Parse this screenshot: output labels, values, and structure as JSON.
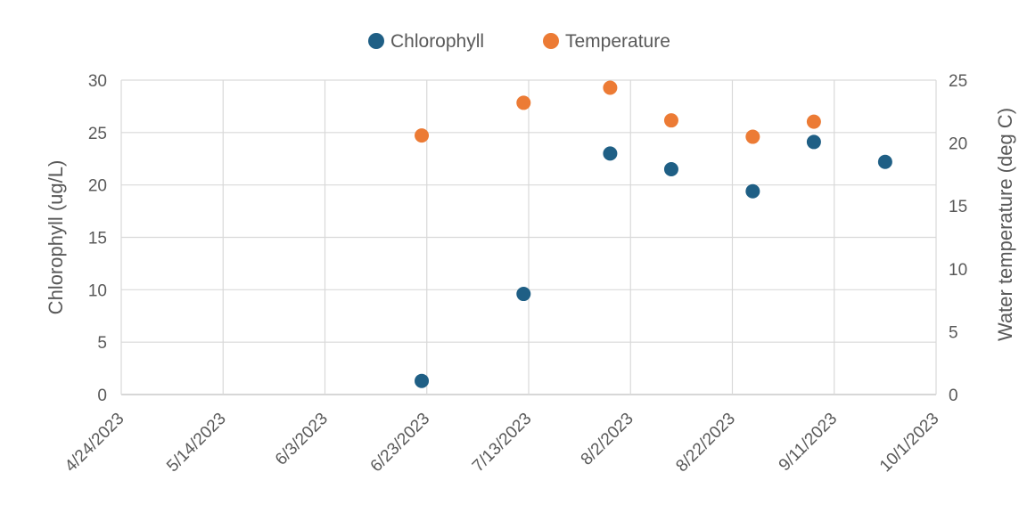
{
  "chart_data": {
    "type": "scatter",
    "x_axis": {
      "type": "date",
      "min": "2023-04-24",
      "max": "2023-10-01",
      "tick_labels": [
        "4/24/2023",
        "5/14/2023",
        "6/3/2023",
        "6/23/2023",
        "7/13/2023",
        "8/2/2023",
        "8/22/2023",
        "9/11/2023",
        "10/1/2023"
      ],
      "tick_dates": [
        "2023-04-24",
        "2023-05-14",
        "2023-06-03",
        "2023-06-23",
        "2023-07-13",
        "2023-08-02",
        "2023-08-22",
        "2023-09-11",
        "2023-10-01"
      ]
    },
    "y_axis_left": {
      "label": "Chlorophyll (ug/L)",
      "min": 0,
      "max": 30,
      "ticks": [
        0,
        5,
        10,
        15,
        20,
        25,
        30
      ]
    },
    "y_axis_right": {
      "label": "Water temperature (deg C)",
      "min": 0,
      "max": 25,
      "ticks": [
        0,
        5,
        10,
        15,
        20,
        25
      ]
    },
    "grid": true,
    "legend_position": "top",
    "series": [
      {
        "name": "Chlorophyll",
        "axis": "left",
        "color": "#1f5f85",
        "points": [
          {
            "x": "2023-06-22",
            "y": 1.3
          },
          {
            "x": "2023-07-12",
            "y": 9.6
          },
          {
            "x": "2023-07-29",
            "y": 23.0
          },
          {
            "x": "2023-08-10",
            "y": 21.5
          },
          {
            "x": "2023-08-26",
            "y": 19.4
          },
          {
            "x": "2023-09-07",
            "y": 24.1
          },
          {
            "x": "2023-09-21",
            "y": 22.2
          }
        ]
      },
      {
        "name": "Temperature",
        "axis": "right",
        "color": "#ec7b35",
        "points": [
          {
            "x": "2023-06-22",
            "y": 20.6
          },
          {
            "x": "2023-07-12",
            "y": 23.2
          },
          {
            "x": "2023-07-29",
            "y": 24.4
          },
          {
            "x": "2023-08-10",
            "y": 21.8
          },
          {
            "x": "2023-08-26",
            "y": 20.5
          },
          {
            "x": "2023-09-07",
            "y": 21.7
          }
        ]
      }
    ]
  }
}
